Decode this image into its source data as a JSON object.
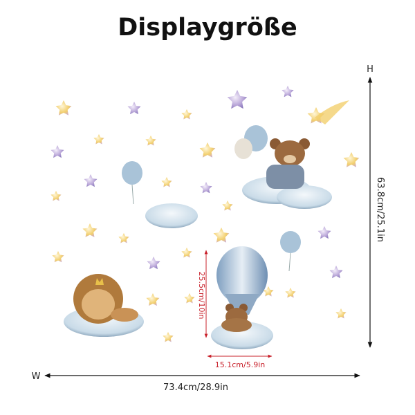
{
  "header": {
    "title": "Displaygröße"
  },
  "dimensions": {
    "height_letter": "H",
    "height": "63.8cm/25.1in",
    "width_letter": "W",
    "width": "73.4cm/28.9in",
    "balloon_height": "25.5cm/10in",
    "balloon_width": "15.1cm/5.9in"
  }
}
